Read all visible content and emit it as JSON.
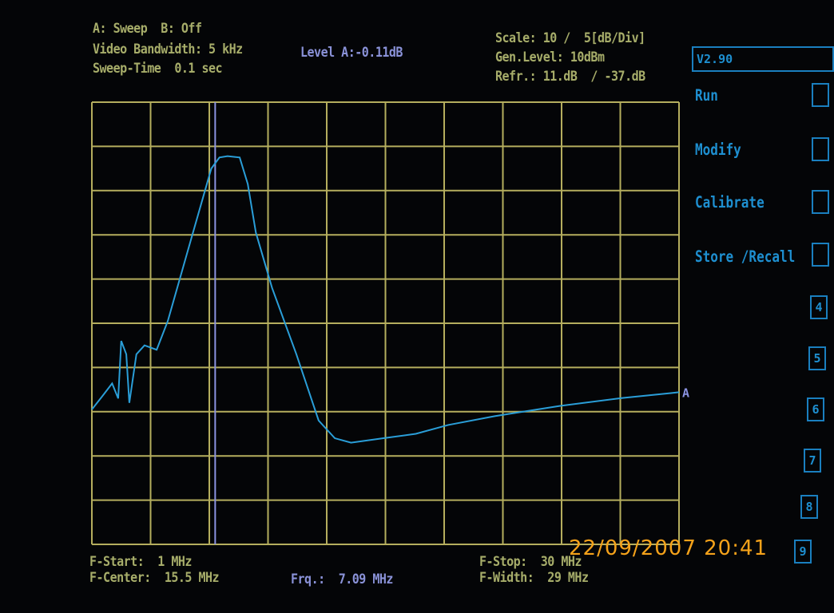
{
  "header": {
    "sweep_mode": "A: Sweep  B: Off",
    "video_bandwidth": "Video Bandwidth: 5 kHz",
    "sweep_time": "Sweep-Time  0.1 sec",
    "marker_level": "Level A:-0.11dB",
    "scale": "Scale: 10 /  5[dB/Div]",
    "gen_level": "Gen.Level: 10dBm",
    "reference": "Refr.: 11.dB  / -37.dB"
  },
  "footer": {
    "f_start": "F-Start:  1 MHz",
    "f_center": "F-Center:  15.5 MHz",
    "marker_freq": "Frq.:  7.09 MHz",
    "f_stop": "F-Stop:  30 MHz",
    "f_width": "F-Width:  29 MHz"
  },
  "softkeys": {
    "version": "V2.90",
    "menu": [
      "Run",
      "Modify",
      "Calibrate",
      "Store /Recall"
    ],
    "numbers": [
      "",
      "",
      "",
      "",
      "4",
      "5",
      "6",
      "7",
      "8",
      "9"
    ]
  },
  "timestamp": "22/09/2007  20:41",
  "colors": {
    "background": "#040507",
    "grid": "#b5ae5e",
    "trace": "#2a9ed8",
    "marker": "#8a92e0",
    "text": "#a7ad6a",
    "softkey": "#1e8fd0",
    "timestamp": "#f5a21a"
  },
  "chart_data": {
    "type": "line",
    "xlabel": "",
    "ylabel": "",
    "xlim": [
      1,
      30
    ],
    "ylim": [
      -89,
      11
    ],
    "x_unit": "MHz",
    "y_unit": "dB",
    "grid": true,
    "grid_divisions": [
      10,
      10
    ],
    "trace_label": "A",
    "marker": {
      "x": 7.09,
      "y": -0.11
    },
    "series": [
      {
        "x": [
          1,
          1.6,
          2.0,
          2.3,
          2.45,
          2.7,
          2.85,
          3.2,
          3.6,
          4.2,
          4.75,
          5.9,
          6.9,
          7.3,
          7.7,
          8.3,
          8.7,
          9.1,
          9.9,
          11.1,
          12.2,
          13.0,
          13.8,
          15.4,
          17.0,
          18.6,
          20.9,
          24.1,
          27.2,
          29.6,
          30
        ],
        "y": [
          -58.5,
          -55,
          -52.6,
          -56,
          -43,
          -46,
          -57,
          -46,
          -44,
          -45,
          -38.5,
          -20,
          -4,
          -1.5,
          -1.2,
          -1.5,
          -7.5,
          -18.5,
          -31,
          -46,
          -61,
          -65,
          -66,
          -65,
          -64,
          -62,
          -60,
          -57.7,
          -55.9,
          -54.8,
          -54.6
        ]
      }
    ]
  }
}
